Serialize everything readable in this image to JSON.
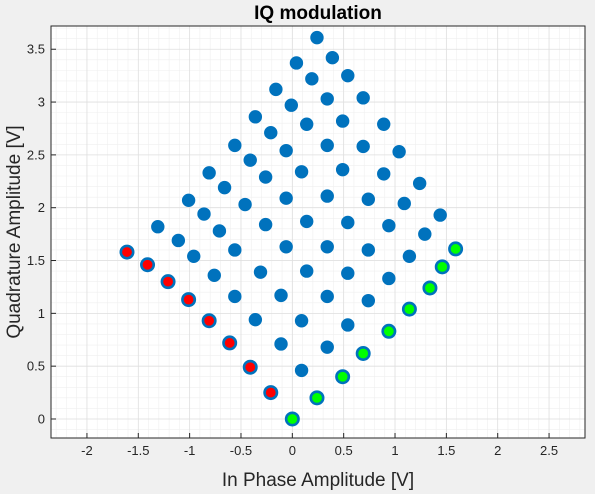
{
  "chart_data": {
    "type": "scatter",
    "title": "IQ modulation",
    "xlabel": "In Phase Amplitude [V]",
    "ylabel": "Quadrature Amplitude [V]",
    "xlim": [
      -2.35,
      2.85
    ],
    "ylim": [
      -0.18,
      3.72
    ],
    "xticks": [
      -2,
      -1.5,
      -1,
      -0.5,
      0,
      0.5,
      1,
      1.5,
      2,
      2.5
    ],
    "xtick_labels": [
      "-2",
      "-1.5",
      "-1",
      "-0.5",
      "0",
      "0.5",
      "1",
      "1.5",
      "2",
      "2.5"
    ],
    "yticks": [
      0,
      0.5,
      1,
      1.5,
      2,
      2.5,
      3,
      3.5
    ],
    "ytick_labels": [
      "0",
      "0.5",
      "1",
      "1.5",
      "2",
      "2.5",
      "3",
      "3.5"
    ],
    "grid": true,
    "minor_grid": true,
    "colors": {
      "point_fill": "#0072bd",
      "point_edge": "#0072bd",
      "red_fill": "#ff0000",
      "green_fill": "#00ff00",
      "background": "#ffffff",
      "figure": "#f0f0f0",
      "grid": "#dfdfdf",
      "axis": "#262626"
    },
    "series": [
      {
        "marker": "blue-filled",
        "points": [
          [
            0.24,
            3.61
          ],
          [
            0.04,
            3.37
          ],
          [
            0.39,
            3.42
          ],
          [
            -0.16,
            3.12
          ],
          [
            0.19,
            3.22
          ],
          [
            0.54,
            3.25
          ],
          [
            -0.36,
            2.86
          ],
          [
            -0.01,
            2.97
          ],
          [
            0.34,
            3.03
          ],
          [
            0.69,
            3.04
          ],
          [
            -0.56,
            2.59
          ],
          [
            -0.21,
            2.71
          ],
          [
            0.14,
            2.79
          ],
          [
            0.49,
            2.82
          ],
          [
            0.89,
            2.79
          ],
          [
            -0.81,
            2.33
          ],
          [
            -0.41,
            2.45
          ],
          [
            -0.06,
            2.54
          ],
          [
            0.34,
            2.59
          ],
          [
            0.69,
            2.58
          ],
          [
            1.04,
            2.53
          ],
          [
            -1.01,
            2.07
          ],
          [
            -0.66,
            2.19
          ],
          [
            -0.26,
            2.29
          ],
          [
            0.09,
            2.34
          ],
          [
            0.49,
            2.36
          ],
          [
            0.89,
            2.32
          ],
          [
            1.24,
            2.23
          ],
          [
            -1.31,
            1.82
          ],
          [
            -0.86,
            1.94
          ],
          [
            -0.46,
            2.03
          ],
          [
            -0.06,
            2.09
          ],
          [
            0.34,
            2.11
          ],
          [
            0.74,
            2.08
          ],
          [
            1.09,
            2.04
          ],
          [
            1.44,
            1.93
          ],
          [
            -1.11,
            1.69
          ],
          [
            -0.71,
            1.78
          ],
          [
            -0.26,
            1.84
          ],
          [
            0.14,
            1.87
          ],
          [
            0.54,
            1.86
          ],
          [
            0.94,
            1.83
          ],
          [
            1.29,
            1.75
          ],
          [
            -0.96,
            1.54
          ],
          [
            -0.56,
            1.6
          ],
          [
            -0.06,
            1.63
          ],
          [
            0.34,
            1.63
          ],
          [
            0.74,
            1.6
          ],
          [
            1.14,
            1.54
          ],
          [
            -0.76,
            1.36
          ],
          [
            -0.31,
            1.39
          ],
          [
            0.14,
            1.4
          ],
          [
            0.54,
            1.38
          ],
          [
            0.94,
            1.33
          ],
          [
            -0.56,
            1.16
          ],
          [
            -0.11,
            1.17
          ],
          [
            0.34,
            1.16
          ],
          [
            0.74,
            1.12
          ],
          [
            -0.36,
            0.94
          ],
          [
            0.09,
            0.93
          ],
          [
            0.54,
            0.89
          ],
          [
            -0.11,
            0.71
          ],
          [
            0.34,
            0.68
          ],
          [
            0.09,
            0.46
          ]
        ]
      },
      {
        "marker": "red-center",
        "points": [
          [
            -1.61,
            1.58
          ],
          [
            -1.41,
            1.46
          ],
          [
            -1.21,
            1.3
          ],
          [
            -1.01,
            1.13
          ],
          [
            -0.81,
            0.93
          ],
          [
            -0.61,
            0.72
          ],
          [
            -0.41,
            0.49
          ],
          [
            -0.21,
            0.25
          ]
        ]
      },
      {
        "marker": "green-center",
        "points": [
          [
            0.0,
            0.0
          ],
          [
            0.24,
            0.2
          ],
          [
            0.49,
            0.4
          ],
          [
            0.69,
            0.62
          ],
          [
            0.94,
            0.83
          ],
          [
            1.14,
            1.04
          ],
          [
            1.34,
            1.24
          ],
          [
            1.46,
            1.44
          ],
          [
            1.59,
            1.61
          ]
        ]
      }
    ]
  }
}
